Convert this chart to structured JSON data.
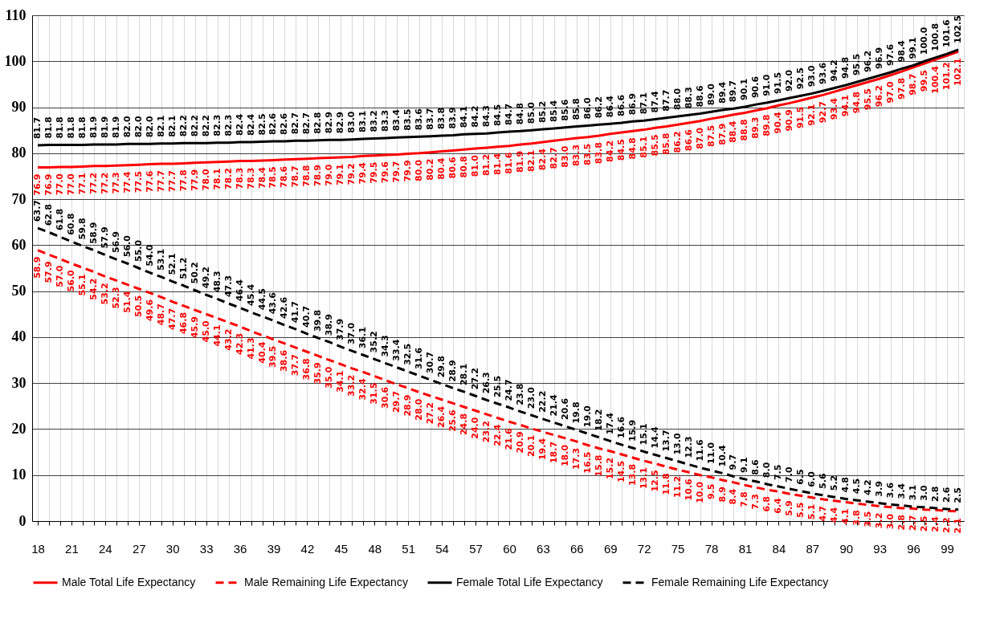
{
  "chart_data": {
    "type": "line",
    "categories": [
      "18",
      null,
      null,
      "21",
      null,
      null,
      "24",
      null,
      null,
      "27",
      null,
      null,
      "30",
      null,
      null,
      "33",
      null,
      null,
      "36",
      null,
      null,
      "39",
      null,
      null,
      "42",
      null,
      null,
      "45",
      null,
      null,
      "48",
      null,
      null,
      "51",
      null,
      null,
      "54",
      null,
      null,
      "57",
      null,
      null,
      "60",
      null,
      null,
      "63",
      null,
      null,
      "66",
      null,
      null,
      "69",
      null,
      null,
      "72",
      null,
      null,
      "75",
      null,
      null,
      "78",
      null,
      null,
      "81",
      null,
      null,
      "84",
      null,
      null,
      "87",
      null,
      null,
      "90",
      null,
      null,
      "93",
      null,
      null,
      "96",
      null,
      null,
      "99",
      null
    ],
    "series": [
      {
        "name": "Male Total Life Expectancy",
        "color": "#ff0000",
        "line_style": "solid",
        "values": [
          76.9,
          76.9,
          77.0,
          77.0,
          77.1,
          77.2,
          77.2,
          77.3,
          77.4,
          77.5,
          77.6,
          77.7,
          77.7,
          77.8,
          77.9,
          78.0,
          78.1,
          78.2,
          78.3,
          78.3,
          78.4,
          78.5,
          78.6,
          78.7,
          78.8,
          78.9,
          79.0,
          79.1,
          79.2,
          79.4,
          79.5,
          79.6,
          79.7,
          79.9,
          80.0,
          80.2,
          80.4,
          80.6,
          80.8,
          81.0,
          81.2,
          81.4,
          81.6,
          81.9,
          82.1,
          82.4,
          82.7,
          83.0,
          83.3,
          83.5,
          83.8,
          84.2,
          84.5,
          84.8,
          85.1,
          85.5,
          85.8,
          86.2,
          86.6,
          87.0,
          87.5,
          87.9,
          88.4,
          88.8,
          89.3,
          89.8,
          90.4,
          90.9,
          91.5,
          92.1,
          92.7,
          93.4,
          94.1,
          94.8,
          95.5,
          96.2,
          97.0,
          97.8,
          98.7,
          99.5,
          100.4,
          101.2,
          102.1
        ],
        "value_labels": [
          "76.9",
          "76.9",
          "77.0",
          "77.0",
          "77.1",
          "77.2",
          "77.2",
          "77.3",
          "77.4",
          "77.5",
          "77.6",
          "77.7",
          "77.7",
          "77.8",
          "77.9",
          "78.0",
          "78.1",
          "78.2",
          "78.3",
          "78.3",
          "78.4",
          "78.5",
          "78.6",
          "78.7",
          "78.8",
          "78.9",
          "79.0",
          "79.1",
          "79.2",
          "79.4",
          "79.5",
          "79.6",
          "79.7",
          "79.9",
          "80.0",
          "80.2",
          "80.4",
          "80.6",
          "80.8",
          "81.0",
          "81.2",
          "81.4",
          "81.6",
          "81.9",
          "82.1",
          "82.4",
          "82.7",
          "83.0",
          "83.3",
          "83.5",
          "83.8",
          "84.2",
          "84.5",
          "84.8",
          "85.1",
          "85.5",
          "85.8",
          "86.2",
          "86.6",
          "87.0",
          "87.5",
          "87.9",
          "88.4",
          "88.8",
          "89.3",
          "89.8",
          "90.4",
          "90.9",
          "91.5",
          "92.1",
          "92.7",
          "93.4",
          "94.1",
          "94.8",
          "95.5",
          "96.2",
          "97.0",
          "97.8",
          "98.7",
          "99.5",
          "100.4",
          "101.2",
          "102.1"
        ]
      },
      {
        "name": "Male Remaining Life Expectancy",
        "color": "#ff0000",
        "line_style": "dashed",
        "values": [
          58.9,
          57.9,
          57.0,
          56.0,
          55.1,
          54.2,
          53.2,
          52.3,
          51.4,
          50.5,
          49.6,
          48.7,
          47.7,
          46.8,
          45.9,
          45.0,
          44.1,
          43.2,
          42.3,
          41.3,
          40.4,
          39.5,
          38.6,
          37.7,
          36.8,
          35.9,
          35.0,
          34.1,
          33.2,
          32.4,
          31.5,
          30.6,
          29.7,
          28.9,
          28.0,
          27.2,
          26.4,
          25.6,
          24.8,
          24.0,
          23.2,
          22.4,
          21.6,
          20.9,
          20.1,
          19.4,
          18.7,
          18.0,
          17.3,
          16.5,
          15.8,
          15.2,
          14.5,
          13.8,
          13.1,
          12.5,
          11.8,
          11.2,
          10.6,
          10.0,
          9.5,
          8.9,
          8.4,
          7.8,
          7.3,
          6.8,
          6.4,
          5.9,
          5.5,
          5.1,
          4.7,
          4.4,
          4.1,
          3.8,
          3.5,
          3.2,
          3.0,
          2.8,
          2.7,
          2.5,
          2.4,
          2.2,
          2.1
        ],
        "value_labels": [
          "58.9",
          "57.9",
          "57.0",
          "56.0",
          "55.1",
          "54.2",
          "53.2",
          "52.3",
          "51.4",
          "50.5",
          "49.6",
          "48.7",
          "47.7",
          "46.8",
          "45.9",
          "45.0",
          "44.1",
          "43.2",
          "42.3",
          "41.3",
          "40.4",
          "39.5",
          "38.6",
          "37.7",
          "36.8",
          "35.9",
          "35.0",
          "34.1",
          "33.2",
          "32.4",
          "31.5",
          "30.6",
          "29.7",
          "28.9",
          "28.0",
          "27.2",
          "26.4",
          "25.6",
          "24.8",
          "24.0",
          "23.2",
          "22.4",
          "21.6",
          "20.9",
          "20.1",
          "19.4",
          "18.7",
          "18.0",
          "17.3",
          "16.5",
          "15.8",
          "15.2",
          "14.5",
          "13.8",
          "13.1",
          "12.5",
          "11.8",
          "11.2",
          "10.6",
          "10.0",
          "9.5",
          "8.9",
          "8.4",
          "7.8",
          "7.3",
          "6.8",
          "6.4",
          "5.9",
          "5.5",
          "5.1",
          "4.7",
          "4.4",
          "4.1",
          "3.8",
          "3.5",
          "3.2",
          "3.0",
          "2.8",
          "2.7",
          "2.5",
          "2.4",
          "2.2",
          "2.1"
        ]
      },
      {
        "name": "Female Total Life Expectancy",
        "color": "#000000",
        "line_style": "solid",
        "values": [
          81.7,
          81.8,
          81.8,
          81.8,
          81.8,
          81.9,
          81.9,
          81.9,
          82.0,
          82.0,
          82.0,
          82.1,
          82.1,
          82.2,
          82.2,
          82.2,
          82.3,
          82.3,
          82.4,
          82.4,
          82.5,
          82.6,
          82.6,
          82.7,
          82.7,
          82.8,
          82.9,
          82.9,
          83.0,
          83.1,
          83.2,
          83.3,
          83.4,
          83.5,
          83.6,
          83.7,
          83.8,
          83.9,
          84.1,
          84.2,
          84.3,
          84.5,
          84.7,
          84.8,
          85.0,
          85.2,
          85.4,
          85.6,
          85.8,
          86.0,
          86.2,
          86.4,
          86.6,
          86.9,
          87.1,
          87.4,
          87.7,
          88.0,
          88.3,
          88.6,
          89.0,
          89.4,
          89.7,
          90.1,
          90.6,
          91.0,
          91.5,
          92.0,
          92.5,
          93.0,
          93.6,
          94.2,
          94.8,
          95.5,
          96.2,
          96.9,
          97.6,
          98.4,
          99.1,
          100.0,
          100.8,
          101.6,
          102.5
        ],
        "value_labels": [
          "81.7",
          "81.8",
          "81.8",
          "81.8",
          "81.8",
          "81.9",
          "81.9",
          "81.9",
          "82.0",
          "82.0",
          "82.0",
          "82.1",
          "82.1",
          "82.2",
          "82.2",
          "82.2",
          "82.3",
          "82.3",
          "82.4",
          "82.4",
          "82.5",
          "82.6",
          "82.6",
          "82.7",
          "82.7",
          "82.8",
          "82.9",
          "82.9",
          "83.0",
          "83.1",
          "83.2",
          "83.3",
          "83.4",
          "83.5",
          "83.6",
          "83.7",
          "83.8",
          "83.9",
          "84.1",
          "84.2",
          "84.3",
          "84.5",
          "84.7",
          "84.8",
          "85.0",
          "85.2",
          "85.4",
          "85.6",
          "85.8",
          "86.0",
          "86.2",
          "86.4",
          "86.6",
          "86.9",
          "87.1",
          "87.4",
          "87.7",
          "88.0",
          "88.3",
          "88.6",
          "89.0",
          "89.4",
          "89.7",
          "90.1",
          "90.6",
          "91.0",
          "91.5",
          "92.0",
          "92.5",
          "93.0",
          "93.6",
          "94.2",
          "94.8",
          "95.5",
          "96.2",
          "96.9",
          "97.6",
          "98.4",
          "99.1",
          "100.0",
          "100.8",
          "101.6",
          "102.5"
        ]
      },
      {
        "name": "Female Remaining Life Expectancy",
        "color": "#000000",
        "line_style": "dashed",
        "values": [
          63.7,
          62.8,
          61.8,
          60.8,
          59.8,
          58.9,
          57.9,
          56.9,
          56.0,
          55.0,
          54.0,
          53.1,
          52.1,
          51.2,
          50.2,
          49.2,
          48.3,
          47.3,
          46.4,
          45.4,
          44.5,
          43.6,
          42.6,
          41.7,
          40.7,
          39.8,
          38.9,
          37.9,
          37.0,
          36.1,
          35.2,
          34.3,
          33.4,
          32.5,
          31.6,
          30.7,
          29.8,
          28.9,
          28.1,
          27.2,
          26.3,
          25.5,
          24.7,
          23.8,
          23.0,
          22.2,
          21.4,
          20.6,
          19.8,
          19.0,
          18.2,
          17.4,
          16.6,
          15.9,
          15.1,
          14.4,
          13.7,
          13.0,
          12.3,
          11.6,
          11.0,
          10.4,
          9.7,
          9.1,
          8.6,
          8.0,
          7.5,
          7.0,
          6.5,
          6.0,
          5.6,
          5.2,
          4.8,
          4.5,
          4.2,
          3.9,
          3.6,
          3.4,
          3.1,
          3.0,
          2.8,
          2.6,
          2.5
        ],
        "value_labels": [
          "63.7",
          "62.8",
          "61.8",
          "60.8",
          "59.8",
          "58.9",
          "57.9",
          "56.9",
          "56.0",
          "55.0",
          "54.0",
          "53.1",
          "52.1",
          "51.2",
          "50.2",
          "49.2",
          "48.3",
          "47.3",
          "46.4",
          "45.4",
          "44.5",
          "43.6",
          "42.6",
          "41.7",
          "40.7",
          "39.8",
          "38.9",
          "37.9",
          "37.0",
          "36.1",
          "35.2",
          "34.3",
          "33.4",
          "32.5",
          "31.6",
          "30.7",
          "29.8",
          "28.9",
          "28.1",
          "27.2",
          "26.3",
          "25.5",
          "24.7",
          "23.8",
          "23.0",
          "22.2",
          "21.4",
          "20.6",
          "19.8",
          "19.0",
          "18.2",
          "17.4",
          "16.6",
          "15.9",
          "15.1",
          "14.4",
          "13.7",
          "13.0",
          "12.3",
          "11.6",
          "11.0",
          "10.4",
          "9.7",
          "9.1",
          "8.6",
          "8.0",
          "7.5",
          "7.0",
          "6.5",
          "6.0",
          "5.6",
          "5.2",
          "4.8",
          "4.5",
          "4.2",
          "3.9",
          "3.6",
          "3.4",
          "3.1",
          "3.0",
          "2.8",
          "2.6",
          "2.5"
        ]
      }
    ],
    "ylim": [
      0,
      110
    ],
    "yticks": [
      0,
      10,
      20,
      30,
      40,
      50,
      60,
      70,
      80,
      90,
      100,
      110
    ],
    "grid": true,
    "legend": "bottom"
  }
}
